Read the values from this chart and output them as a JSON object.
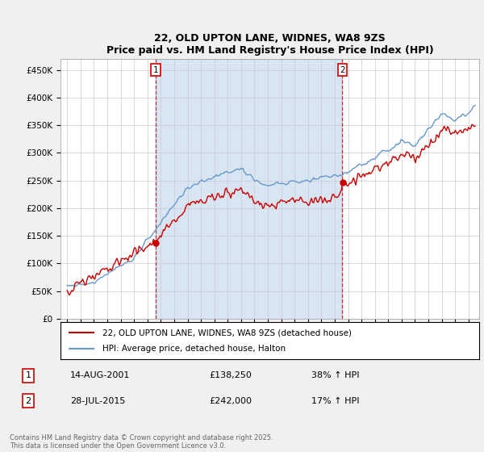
{
  "title": "22, OLD UPTON LANE, WIDNES, WA8 9ZS",
  "subtitle": "Price paid vs. HM Land Registry's House Price Index (HPI)",
  "ylim": [
    0,
    470000
  ],
  "yticks": [
    0,
    50000,
    100000,
    150000,
    200000,
    250000,
    300000,
    350000,
    400000,
    450000
  ],
  "ytick_labels": [
    "£0",
    "£50K",
    "£100K",
    "£150K",
    "£200K",
    "£250K",
    "£300K",
    "£350K",
    "£400K",
    "£450K"
  ],
  "sale1_date_num": 2001.617,
  "sale1_price": 138250,
  "sale2_date_num": 2015.573,
  "sale2_price": 242000,
  "legend_line1": "22, OLD UPTON LANE, WIDNES, WA8 9ZS (detached house)",
  "legend_line2": "HPI: Average price, detached house, Halton",
  "table_row1": [
    "1",
    "14-AUG-2001",
    "£138,250",
    "38% ↑ HPI"
  ],
  "table_row2": [
    "2",
    "28-JUL-2015",
    "£242,000",
    "17% ↑ HPI"
  ],
  "footer": "Contains HM Land Registry data © Crown copyright and database right 2025.\nThis data is licensed under the Open Government Licence v3.0.",
  "red_color": "#cc0000",
  "blue_color": "#6699cc",
  "shade_color": "#ddeeff",
  "background_color": "#f0f0f0",
  "plot_bg_color": "#ffffff"
}
